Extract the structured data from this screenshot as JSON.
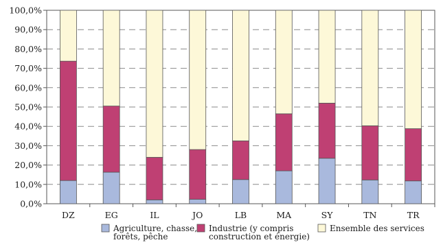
{
  "chart_data": {
    "type": "bar",
    "stacked": true,
    "categories": [
      "DZ",
      "EG",
      "IL",
      "JO",
      "LB",
      "MA",
      "SY",
      "TN",
      "TR"
    ],
    "series": [
      {
        "name": "Agriculture, chasse, forêts, pêche",
        "name_lines": [
          "Agriculture, chasse,",
          "forêts, pêche"
        ],
        "color": "#a9b9dd",
        "values": [
          12,
          16.3,
          2,
          2.3,
          12.5,
          17,
          23.5,
          12.3,
          11.8
        ]
      },
      {
        "name": "Industrie (y compris construction et énergie)",
        "name_lines": [
          "Industrie (y compris",
          "construction et énergie)"
        ],
        "color": "#bf4073",
        "values": [
          61.7,
          34.2,
          22,
          25.7,
          20,
          29.5,
          28.5,
          28,
          27
        ]
      },
      {
        "name": "Ensemble des services",
        "name_lines": [
          "Ensemble des services"
        ],
        "color": "#fdf8d8",
        "values": [
          26.3,
          49.5,
          76,
          72,
          67.5,
          53.5,
          48,
          59.7,
          61.2
        ]
      }
    ],
    "yticks": [
      "0,0%",
      "10,0%",
      "20,0%",
      "30,0%",
      "40,0%",
      "50,0%",
      "60,0%",
      "70,0%",
      "80,0%",
      "90,0%",
      "100,0%"
    ],
    "ylim": [
      0,
      100
    ],
    "grid": true,
    "grid_style": "dashed",
    "legend_position": "bottom",
    "title": "",
    "xlabel": "",
    "ylabel": ""
  }
}
